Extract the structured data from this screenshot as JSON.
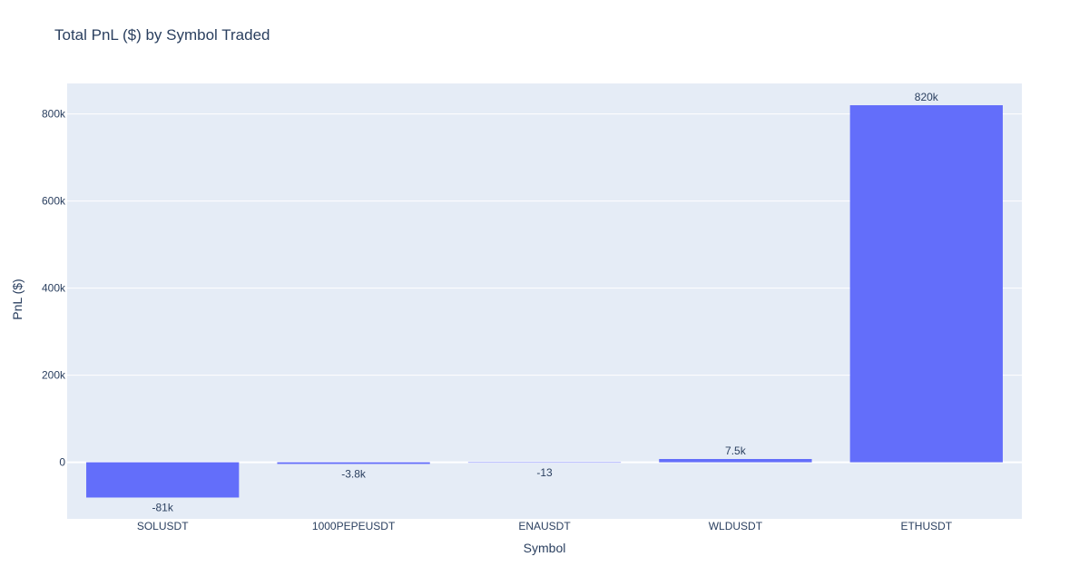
{
  "chart_data": {
    "type": "bar",
    "title": "Total PnL ($) by Symbol Traded",
    "xlabel": "Symbol",
    "ylabel": "PnL ($)",
    "categories": [
      "SOLUSDT",
      "1000PEPEUSDT",
      "ENAUSDT",
      "WLDUSDT",
      "ETHUSDT"
    ],
    "values": [
      -81000,
      -3800,
      -13,
      7500,
      820000
    ],
    "value_labels": [
      "-81k",
      "-3.8k",
      "-13",
      "7.5k",
      "820k"
    ],
    "y_ticks": [
      0,
      200000,
      400000,
      600000,
      800000
    ],
    "y_tick_labels": [
      "0",
      "200k",
      "400k",
      "600k",
      "800k"
    ],
    "ylim": [
      -130000,
      870000
    ],
    "grid": true,
    "colors": {
      "bar": "#636efa",
      "plot_bg": "#e5ecf6",
      "grid": "#ffffff",
      "text": "#2a3f5f"
    }
  }
}
